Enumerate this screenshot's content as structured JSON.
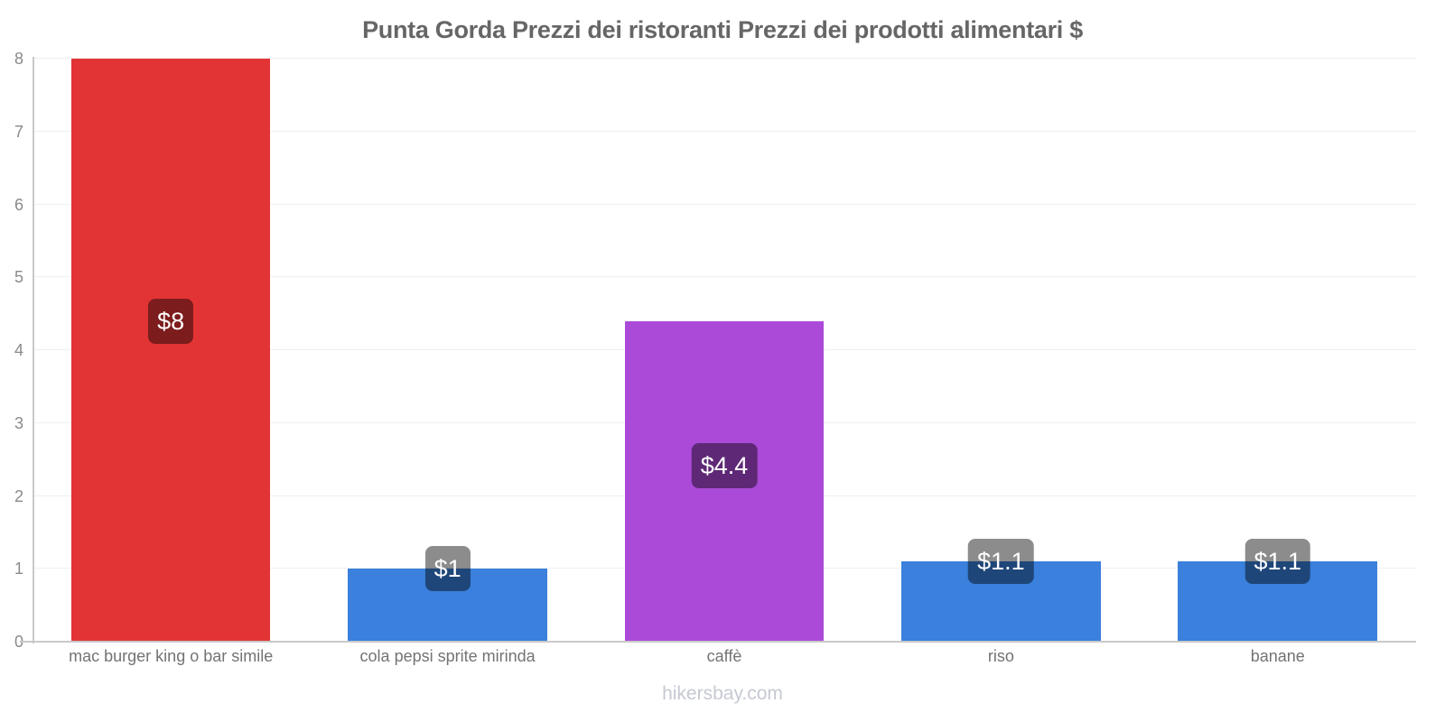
{
  "chart_data": {
    "type": "bar",
    "title": "Punta Gorda Prezzi dei ristoranti Prezzi dei prodotti alimentari $",
    "categories": [
      "mac burger king o bar simile",
      "cola pepsi sprite mirinda",
      "caffè",
      "riso",
      "banane"
    ],
    "values": [
      8,
      1,
      4.4,
      1.1,
      1.1
    ],
    "value_labels": [
      "$8",
      "$1",
      "$4.4",
      "$1.1",
      "$1.1"
    ],
    "bar_colors": [
      "#e23434",
      "#3a80dc",
      "#ab4ad8",
      "#3a80dc",
      "#3a80dc"
    ],
    "currency": "$",
    "ylim": [
      0,
      8
    ],
    "yticks": [
      0,
      1,
      2,
      3,
      4,
      5,
      6,
      7,
      8
    ],
    "xlabel": "",
    "ylabel": "",
    "grid": true,
    "legend": false
  },
  "watermark": "hikersbay.com",
  "ui_colors": {
    "background": "#ffffff",
    "title_text": "#666666",
    "axis": "#c9c9c9",
    "gridline": "#efeff1",
    "tick_text": "#8a8a8a",
    "category_text": "#737373",
    "badge_overlay": "rgba(0,0,0,0.45)",
    "badge_text": "#ffffff",
    "watermark_text": "#c6c9d2"
  }
}
